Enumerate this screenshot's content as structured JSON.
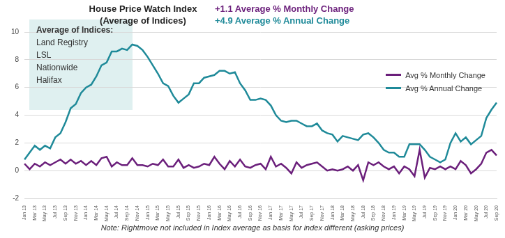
{
  "chart_data": {
    "type": "line",
    "title": "House Price Watch Index",
    "subtitle": "(Average of Indices)",
    "annotations": {
      "stats": [
        {
          "text": "+1.1 Average % Monthly Change",
          "color": "#6b1f7b"
        },
        {
          "text": "+4.9 Average % Annual Change",
          "color": "#1f8a99"
        }
      ],
      "box": {
        "title": "Average of Indices:",
        "items": [
          "Land Registry",
          "LSL",
          "Nationwide",
          "Halifax"
        ]
      },
      "note": "Note: Rightmove not included in Index average as basis for index different (asking prices)"
    },
    "categories": [
      "Jan 13",
      null,
      "Mar 13",
      null,
      "May 13",
      null,
      "Jul 13",
      null,
      "Sep 13",
      null,
      "Nov 13",
      null,
      "Jan 14",
      null,
      "Mar 14",
      null,
      "May 14",
      null,
      "Jul 14",
      null,
      "Sep 14",
      null,
      "Nov 14",
      null,
      "Jan 15",
      null,
      "Mar 15",
      null,
      "May 15",
      null,
      "Jul 15",
      null,
      "Sep 15",
      null,
      "Nov 15",
      null,
      "Jan 16",
      null,
      "Mar 16",
      null,
      "May 16",
      null,
      "Jul 16",
      null,
      "Sep 16",
      null,
      "Nov 16",
      null,
      "Jan 17",
      null,
      "Mar 17",
      null,
      "May 17",
      null,
      "Jul 17",
      null,
      "Sep 17",
      null,
      "Nov 17",
      null,
      "Jan 18",
      null,
      "Mar 18",
      null,
      "May 18",
      null,
      "Jul 18",
      null,
      "Sep 18",
      null,
      "Nov 18",
      null,
      "Jan 19",
      null,
      "Mar 19",
      null,
      "May 19",
      null,
      "Jul 19",
      null,
      "Sep 19",
      null,
      "Nov 19",
      null,
      "Jan 20",
      null,
      "Mar 20",
      null,
      "May 20",
      null,
      "Jul 20",
      null,
      "Sep 20"
    ],
    "series": [
      {
        "name": "Avg % Monthly Change",
        "color": "#6b1f7b",
        "values": [
          0.5,
          0.1,
          0.5,
          0.3,
          0.6,
          0.4,
          0.6,
          0.8,
          0.5,
          0.8,
          0.5,
          0.7,
          0.4,
          0.7,
          0.4,
          0.9,
          1.0,
          0.3,
          0.6,
          0.4,
          0.4,
          0.9,
          0.4,
          0.4,
          0.3,
          0.5,
          0.4,
          0.8,
          0.3,
          0.3,
          0.8,
          0.2,
          0.4,
          0.2,
          0.3,
          0.5,
          0.4,
          1.0,
          0.5,
          0.1,
          0.7,
          0.3,
          0.8,
          0.3,
          0.2,
          0.4,
          0.5,
          0.1,
          1.0,
          0.3,
          0.5,
          0.2,
          -0.2,
          0.6,
          0.2,
          0.4,
          0.5,
          0.6,
          0.3,
          0.0,
          0.1,
          0.0,
          0.1,
          0.3,
          0.0,
          0.4,
          -0.7,
          0.6,
          0.4,
          0.6,
          0.3,
          0.1,
          0.3,
          -0.2,
          0.3,
          0.1,
          -0.4,
          1.5,
          -0.5,
          0.2,
          0.1,
          0.3,
          0.1,
          0.3,
          0.1,
          0.7,
          0.4,
          -0.2,
          0.1,
          0.5,
          1.3,
          1.5,
          1.1
        ]
      },
      {
        "name": "Avg % Annual Change",
        "color": "#1f8a99",
        "values": [
          0.8,
          1.3,
          1.8,
          1.5,
          1.8,
          1.6,
          2.4,
          2.7,
          3.5,
          4.5,
          4.8,
          5.6,
          6.0,
          6.2,
          6.8,
          7.6,
          7.8,
          8.6,
          8.6,
          8.8,
          8.7,
          9.1,
          9.0,
          8.7,
          8.2,
          7.6,
          7.0,
          6.3,
          6.1,
          5.4,
          4.9,
          5.2,
          5.5,
          6.3,
          6.3,
          6.7,
          6.8,
          6.9,
          7.2,
          7.2,
          7.0,
          7.1,
          6.3,
          5.8,
          5.1,
          5.1,
          5.2,
          5.1,
          4.7,
          4.0,
          3.6,
          3.5,
          3.6,
          3.6,
          3.4,
          3.2,
          3.2,
          3.4,
          2.9,
          2.7,
          2.6,
          2.1,
          2.5,
          2.4,
          2.3,
          2.2,
          2.6,
          2.7,
          2.4,
          2.0,
          1.5,
          1.3,
          1.3,
          1.0,
          1.0,
          1.9,
          1.9,
          1.9,
          1.5,
          1.0,
          0.8,
          0.6,
          0.8,
          2.0,
          2.7,
          2.1,
          2.4,
          1.9,
          2.2,
          2.5,
          3.8,
          4.4,
          4.9
        ]
      }
    ],
    "ylim": [
      -2,
      10
    ],
    "yticks": [
      -2,
      0,
      2,
      4,
      6,
      8,
      10
    ],
    "grid": true,
    "legend": "right"
  }
}
